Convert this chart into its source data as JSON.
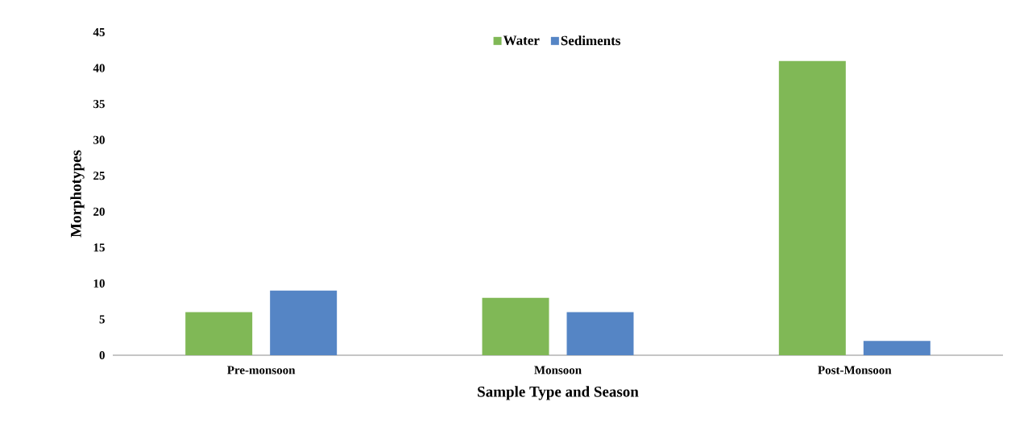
{
  "chart_data": {
    "type": "bar",
    "xlabel": "Sample Type and Season",
    "ylabel": "Morphotypes",
    "categories": [
      "Pre-monsoon",
      "Monsoon",
      "Post-Monsoon"
    ],
    "series": [
      {
        "name": "Water",
        "color": "#80b856",
        "values": [
          6,
          8,
          41
        ]
      },
      {
        "name": "Sediments",
        "color": "#5585c5",
        "values": [
          9,
          6,
          2
        ]
      }
    ],
    "ylim": [
      0,
      45
    ],
    "yticks": [
      0,
      5,
      10,
      15,
      20,
      25,
      30,
      35,
      40,
      45
    ],
    "legend": "top"
  }
}
